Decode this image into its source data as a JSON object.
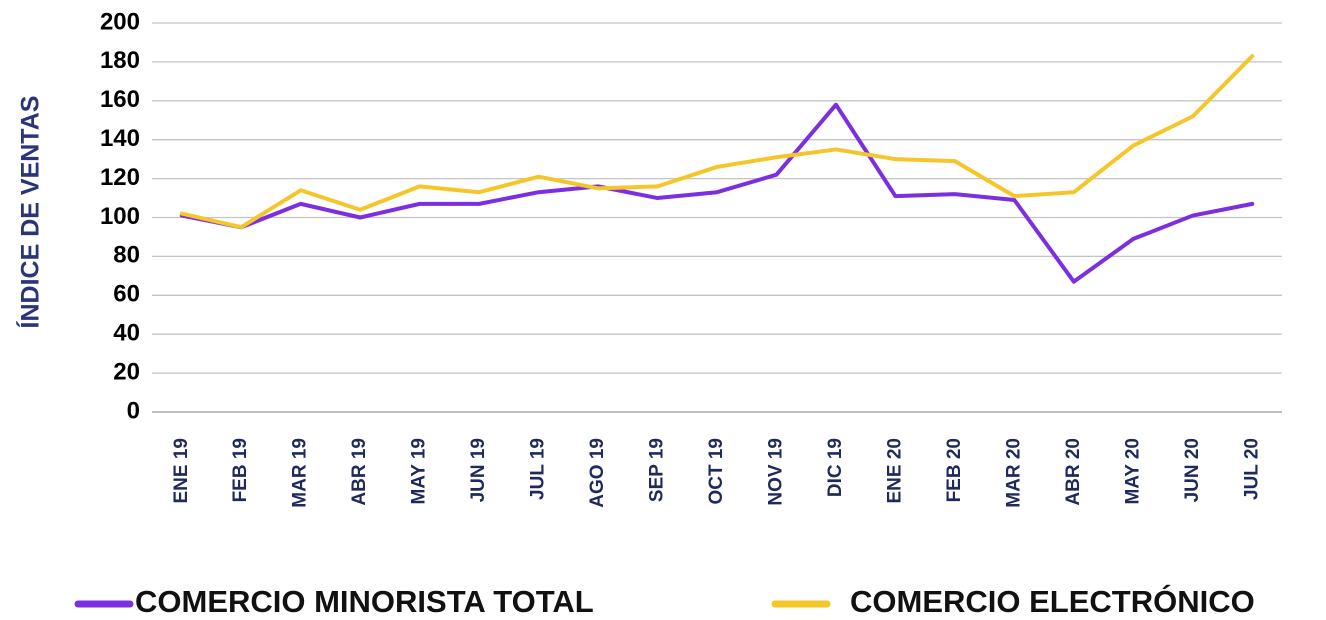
{
  "chart_data": {
    "type": "line",
    "y_label": "ÍNDICE DE VENTAS",
    "categories": [
      "ENE 19",
      "FEB 19",
      "MAR 19",
      "ABR 19",
      "MAY 19",
      "JUN 19",
      "JUL 19",
      "AGO 19",
      "SEP 19",
      "OCT 19",
      "NOV 19",
      "DIC 19",
      "ENE 20",
      "FEB 20",
      "MAR 20",
      "ABR 20",
      "MAY 20",
      "JUN 20",
      "JUL 20"
    ],
    "series": [
      {
        "name": "COMERCIO MINORISTA TOTAL",
        "color": "#7b2fe0",
        "values": [
          101,
          95,
          107,
          100,
          107,
          107,
          113,
          116,
          110,
          113,
          122,
          158,
          111,
          112,
          109,
          67,
          89,
          101,
          107
        ]
      },
      {
        "name": "COMERCIO ELECTRÓNICO",
        "color": "#f5c62a",
        "values": [
          102,
          95,
          114,
          104,
          116,
          113,
          121,
          115,
          116,
          126,
          131,
          135,
          130,
          129,
          111,
          113,
          137,
          152,
          183
        ]
      }
    ],
    "ylim": [
      0,
      200
    ],
    "yticks": [
      0,
      20,
      40,
      60,
      80,
      100,
      120,
      140,
      160,
      180,
      200
    ],
    "grid": true
  }
}
